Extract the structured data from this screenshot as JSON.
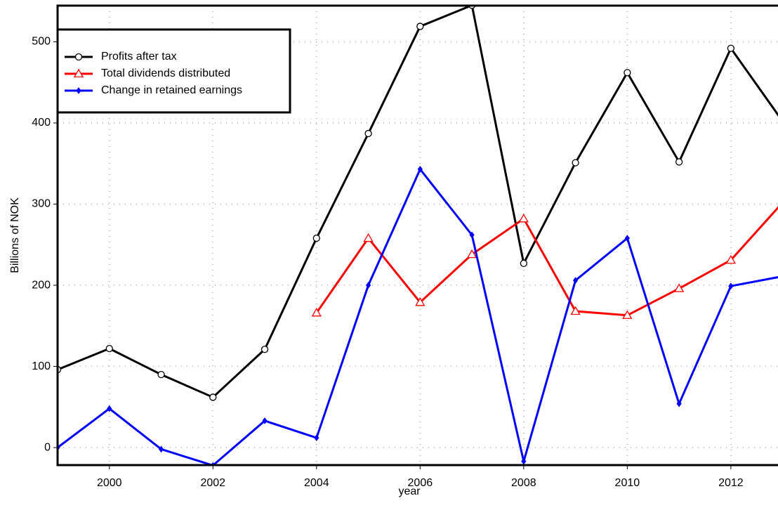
{
  "chart_data": {
    "type": "line",
    "x_label": "year",
    "y_label": "Billions of NOK",
    "x": [
      1999,
      2000,
      2001,
      2002,
      2003,
      2004,
      2005,
      2006,
      2007,
      2008,
      2009,
      2010,
      2011,
      2012,
      2013
    ],
    "series": [
      {
        "name": "Profits after tax",
        "color": "#000000",
        "marker": "circle",
        "values": [
          96,
          122,
          90,
          62,
          121,
          258,
          387,
          519,
          545,
          227,
          351,
          462,
          352,
          492,
          402
        ]
      },
      {
        "name": "Total dividends distributed",
        "color": "#ff0000",
        "marker": "triangle",
        "values": [
          null,
          null,
          null,
          null,
          null,
          166,
          258,
          179,
          238,
          282,
          168,
          163,
          196,
          231,
          302
        ]
      },
      {
        "name": "Change in retained earnings",
        "color": "#0000ff",
        "marker": "diamond",
        "values": [
          0,
          48,
          -2,
          -22,
          33,
          12,
          200,
          343,
          262,
          -17,
          206,
          258,
          54,
          199,
          211
        ]
      }
    ],
    "xlim": [
      1999,
      2012.91
    ],
    "ylim": [
      -21.6,
      544.6
    ],
    "xticks": [
      2000,
      2002,
      2004,
      2006,
      2008,
      2010,
      2012
    ],
    "yticks": [
      0,
      100,
      200,
      300,
      400,
      500
    ],
    "grid": true,
    "legend": "top-left"
  }
}
